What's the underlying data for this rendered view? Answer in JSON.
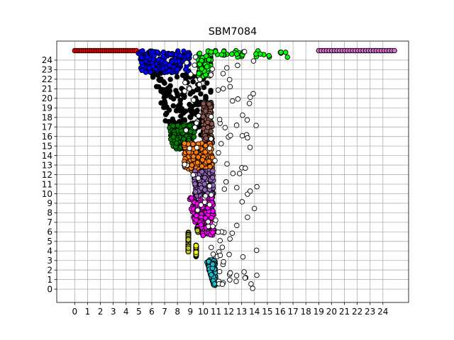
{
  "chart_data": {
    "type": "scatter",
    "title": "SBM7084",
    "xlabel": "",
    "ylabel": "",
    "xlim": [
      -1.4,
      26.0
    ],
    "ylim": [
      -1.4,
      26.0
    ],
    "x_ticks": [
      0,
      1,
      2,
      3,
      4,
      5,
      6,
      7,
      8,
      9,
      10,
      11,
      12,
      13,
      14,
      15,
      16,
      17,
      18,
      19,
      20,
      21,
      22,
      23,
      24
    ],
    "y_ticks": [
      0,
      1,
      2,
      3,
      4,
      5,
      6,
      7,
      8,
      9,
      10,
      11,
      12,
      13,
      14,
      15,
      16,
      17,
      18,
      19,
      20,
      21,
      22,
      23,
      24
    ],
    "grid": true,
    "legend": "none",
    "marker": "circle",
    "marker_edge_color": "#000000",
    "series": [
      {
        "color": "#ff0000",
        "region": {
          "x": [
            0.0,
            4.8
          ],
          "y": [
            24.6,
            25.0
          ]
        }
      },
      {
        "color": "#0000ff",
        "region": {
          "x": [
            4.9,
            9.0
          ],
          "y": [
            22.7,
            25.0
          ]
        }
      },
      {
        "color": "#000000",
        "region": {
          "x": [
            6.0,
            10.8
          ],
          "y": [
            16.0,
            22.7
          ]
        }
      },
      {
        "color": "#008000",
        "region": {
          "x": [
            7.3,
            9.3
          ],
          "y": [
            14.6,
            17.3
          ]
        }
      },
      {
        "color": "#00ff00",
        "region": {
          "x": [
            9.6,
            16.6
          ],
          "y": [
            22.3,
            25.0
          ]
        }
      },
      {
        "color": "#8c564b",
        "region": {
          "x": [
            10.0,
            10.8
          ],
          "y": [
            15.3,
            19.6
          ]
        }
      },
      {
        "color": "#ff7f0e",
        "region": {
          "x": [
            8.5,
            11.0
          ],
          "y": [
            12.4,
            15.3
          ]
        }
      },
      {
        "color": "#9467bd",
        "region": {
          "x": [
            9.3,
            11.0
          ],
          "y": [
            9.6,
            12.4
          ]
        }
      },
      {
        "color": "#ff00ff",
        "region": {
          "x": [
            8.2,
            11.0
          ],
          "y": [
            5.6,
            9.6
          ]
        }
      },
      {
        "color": "#bcbd22",
        "region": {
          "x": [
            8.1,
            9.6
          ],
          "y": [
            3.9,
            6.3
          ]
        }
      },
      {
        "color": "#ffff00",
        "region": {
          "x": [
            9.1,
            9.8
          ],
          "y": [
            3.4,
            4.6
          ]
        }
      },
      {
        "color": "#17becf",
        "region": {
          "x": [
            9.9,
            11.0
          ],
          "y": [
            0.4,
            3.1
          ]
        }
      },
      {
        "color": "#ffffff",
        "region": {
          "x": [
            8.5,
            18.0
          ],
          "y": [
            0.0,
            25.0
          ]
        }
      },
      {
        "color": "#da70d6",
        "region": {
          "x": [
            19.0,
            24.9
          ],
          "y": [
            25.0,
            25.0
          ]
        }
      }
    ]
  }
}
